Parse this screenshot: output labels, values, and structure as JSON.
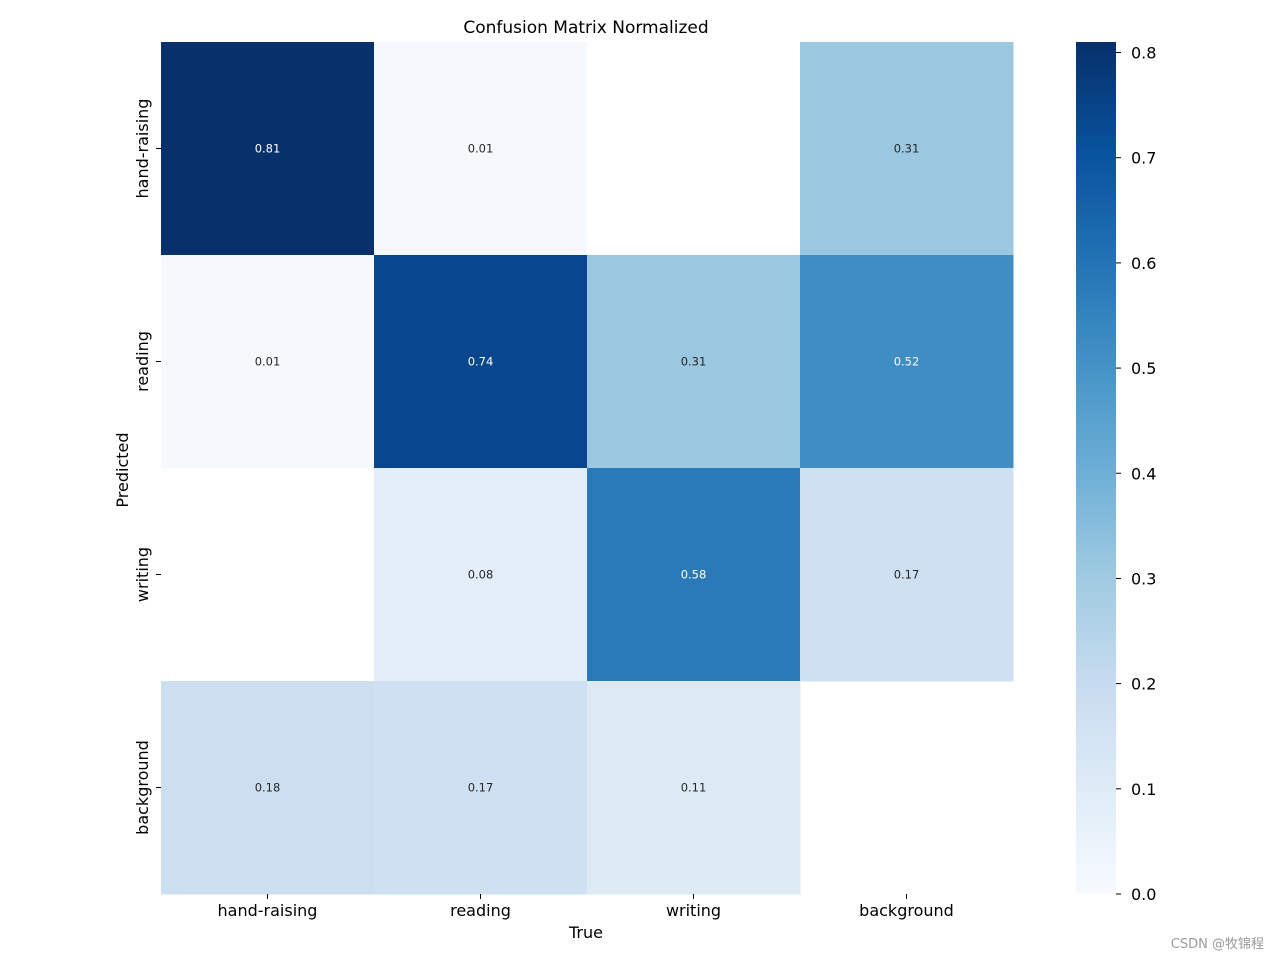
{
  "chart_data": {
    "type": "heatmap",
    "title": "Confusion Matrix Normalized",
    "xlabel": "True",
    "ylabel": "Predicted",
    "x_categories": [
      "hand-raising",
      "reading",
      "writing",
      "background"
    ],
    "y_categories": [
      "hand-raising",
      "reading",
      "writing",
      "background"
    ],
    "matrix": [
      [
        0.81,
        0.01,
        null,
        0.31
      ],
      [
        0.01,
        0.74,
        0.31,
        0.52
      ],
      [
        null,
        0.08,
        0.58,
        0.17
      ],
      [
        0.18,
        0.17,
        0.11,
        null
      ]
    ],
    "colormap": "Blues",
    "vmin": 0.0,
    "vmax": 0.81,
    "colorbar_ticks": [
      0.0,
      0.1,
      0.2,
      0.3,
      0.4,
      0.5,
      0.6,
      0.7,
      0.8
    ],
    "colorbar_tick_labels": [
      "0.0",
      "0.1",
      "0.2",
      "0.3",
      "0.4",
      "0.5",
      "0.6",
      "0.7",
      "0.8"
    ]
  },
  "watermark": "CSDN @牧锦程"
}
